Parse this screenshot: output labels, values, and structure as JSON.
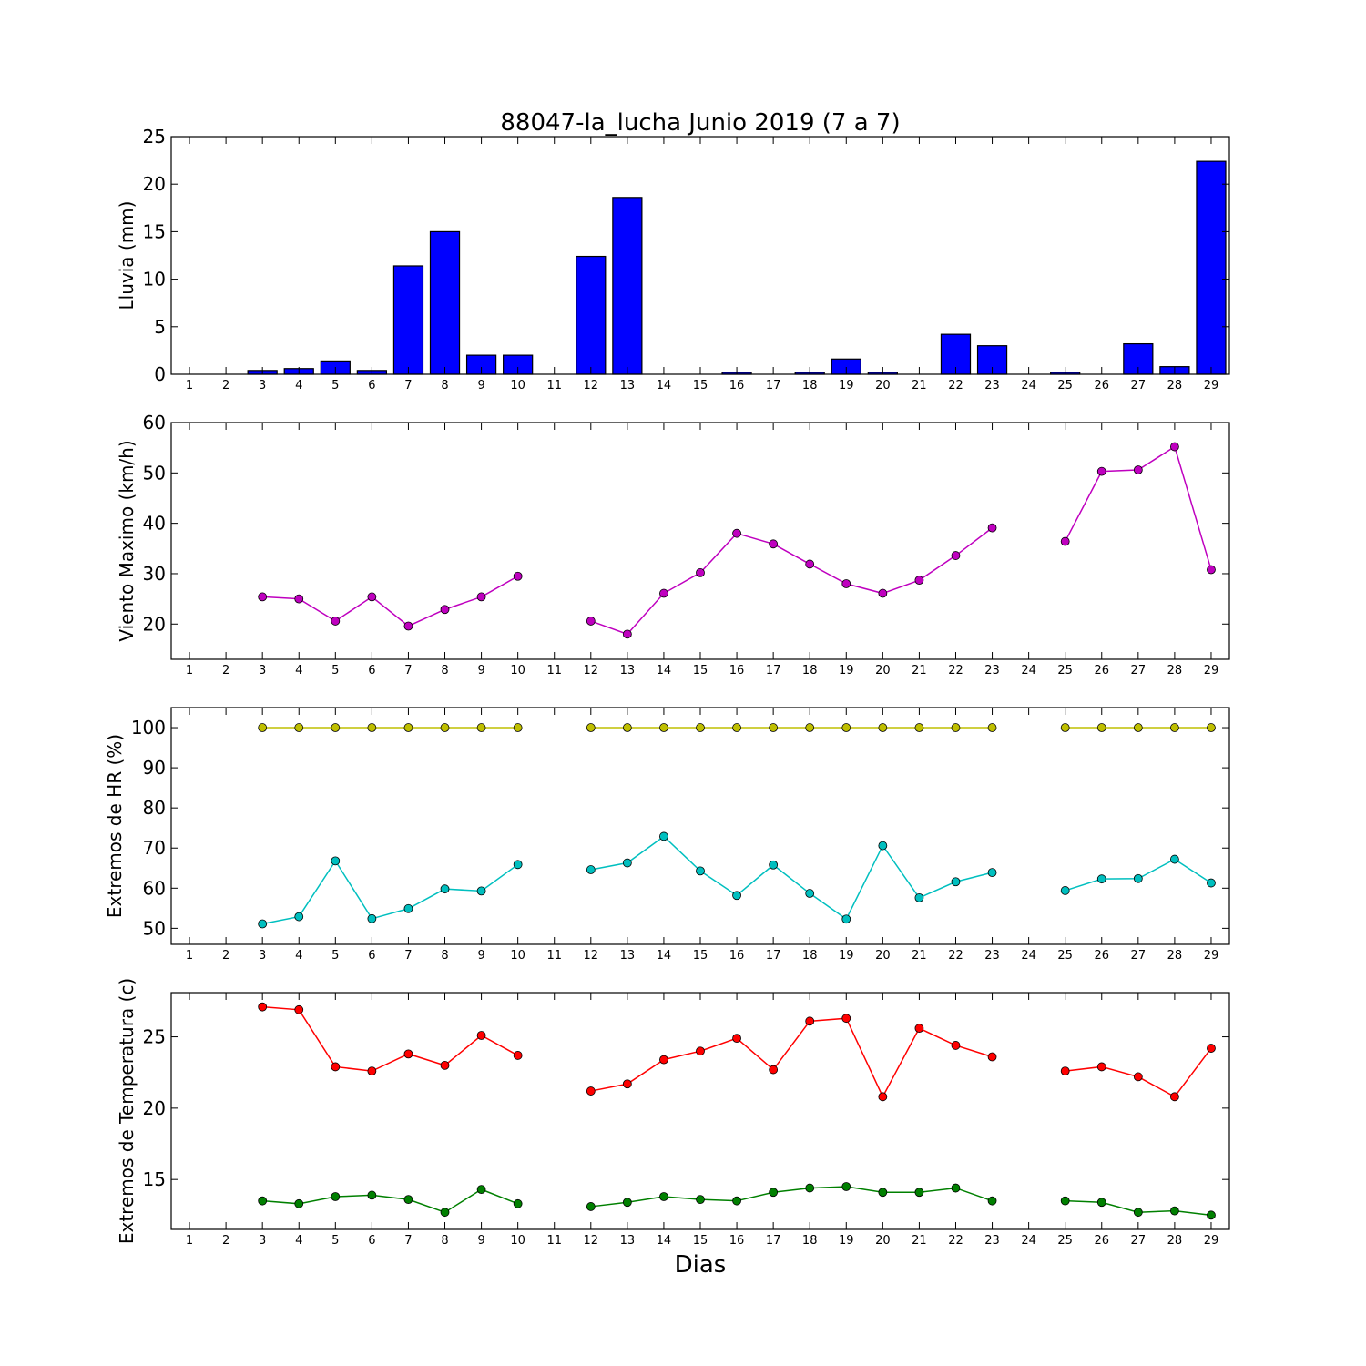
{
  "chart_data": [
    {
      "type": "bar",
      "title": "88047-la_lucha Junio 2019  (7 a 7)",
      "ylabel": "Lluvia (mm)",
      "xlabel": "",
      "ylim": [
        0,
        25
      ],
      "yticks": [
        0,
        5,
        10,
        15,
        20,
        25
      ],
      "categories": [
        "1",
        "2",
        "3",
        "4",
        "5",
        "6",
        "7",
        "8",
        "9",
        "10",
        "11",
        "12",
        "13",
        "14",
        "15",
        "16",
        "17",
        "18",
        "19",
        "20",
        "21",
        "22",
        "23",
        "24",
        "25",
        "26",
        "27",
        "28",
        "29"
      ],
      "values": [
        0,
        0,
        0.4,
        0.6,
        1.4,
        0.4,
        11.4,
        15.0,
        2.0,
        2.0,
        0,
        12.4,
        18.6,
        0,
        0,
        0.2,
        0,
        0.2,
        1.6,
        0.2,
        0,
        4.2,
        3.0,
        0,
        0.2,
        0,
        3.2,
        0.8,
        22.4
      ],
      "color": "#0000ff"
    },
    {
      "type": "line",
      "title": "",
      "ylabel": "Viento Maximo (km/h)",
      "xlabel": "",
      "ylim": [
        13,
        60
      ],
      "yticks": [
        20,
        30,
        40,
        50,
        60
      ],
      "categories": [
        "1",
        "2",
        "3",
        "4",
        "5",
        "6",
        "7",
        "8",
        "9",
        "10",
        "11",
        "12",
        "13",
        "14",
        "15",
        "16",
        "17",
        "18",
        "19",
        "20",
        "21",
        "22",
        "23",
        "24",
        "25",
        "26",
        "27",
        "28",
        "29"
      ],
      "series": [
        {
          "color": "#bf00bf",
          "values": [
            null,
            null,
            25.4,
            25.0,
            20.6,
            25.4,
            19.6,
            22.9,
            25.4,
            29.5,
            null,
            20.6,
            18.0,
            26.1,
            30.2,
            38.0,
            35.9,
            31.9,
            28.0,
            26.1,
            28.7,
            33.6,
            39.1,
            null,
            36.4,
            50.3,
            50.6,
            55.2,
            30.8
          ]
        }
      ]
    },
    {
      "type": "line",
      "title": "",
      "ylabel": "Extremos de HR (%)",
      "xlabel": "",
      "ylim": [
        46,
        105
      ],
      "yticks": [
        50,
        60,
        70,
        80,
        90,
        100
      ],
      "categories": [
        "1",
        "2",
        "3",
        "4",
        "5",
        "6",
        "7",
        "8",
        "9",
        "10",
        "11",
        "12",
        "13",
        "14",
        "15",
        "16",
        "17",
        "18",
        "19",
        "20",
        "21",
        "22",
        "23",
        "24",
        "25",
        "26",
        "27",
        "28",
        "29"
      ],
      "series": [
        {
          "color": "#bfbf00",
          "values": [
            null,
            null,
            100,
            100,
            100,
            100,
            100,
            100,
            100,
            100,
            null,
            100,
            100,
            100,
            100,
            100,
            100,
            100,
            100,
            100,
            100,
            100,
            100,
            null,
            100,
            100,
            100,
            100,
            100
          ]
        },
        {
          "color": "#00bfbf",
          "values": [
            null,
            null,
            51.1,
            52.9,
            66.8,
            52.4,
            54.9,
            59.8,
            59.3,
            65.9,
            null,
            64.6,
            66.3,
            72.9,
            64.3,
            58.2,
            65.8,
            58.7,
            52.3,
            70.6,
            57.6,
            61.6,
            63.9,
            null,
            59.4,
            62.3,
            62.4,
            67.2,
            61.3
          ]
        }
      ]
    },
    {
      "type": "line",
      "title": "",
      "ylabel": "Extremos de Temperatura (c)",
      "xlabel": "Dias",
      "ylim": [
        11.5,
        28.1
      ],
      "yticks": [
        15,
        20,
        25
      ],
      "categories": [
        "1",
        "2",
        "3",
        "4",
        "5",
        "6",
        "7",
        "8",
        "9",
        "10",
        "11",
        "12",
        "13",
        "14",
        "15",
        "16",
        "17",
        "18",
        "19",
        "20",
        "21",
        "22",
        "23",
        "24",
        "25",
        "26",
        "27",
        "28",
        "29"
      ],
      "series": [
        {
          "color": "#ff0000",
          "values": [
            null,
            null,
            27.1,
            26.9,
            22.9,
            22.6,
            23.8,
            23.0,
            25.1,
            23.7,
            null,
            21.2,
            21.7,
            23.4,
            24.0,
            24.9,
            22.7,
            26.1,
            26.3,
            20.8,
            25.6,
            24.4,
            23.6,
            null,
            22.6,
            22.9,
            22.2,
            20.8,
            24.2
          ]
        },
        {
          "color": "#008000",
          "values": [
            null,
            null,
            13.5,
            13.3,
            13.8,
            13.9,
            13.6,
            12.7,
            14.3,
            13.3,
            null,
            13.1,
            13.4,
            13.8,
            13.6,
            13.5,
            14.1,
            14.4,
            14.5,
            14.1,
            14.1,
            14.4,
            13.5,
            null,
            13.5,
            13.4,
            12.7,
            12.8,
            12.5
          ]
        }
      ]
    }
  ]
}
